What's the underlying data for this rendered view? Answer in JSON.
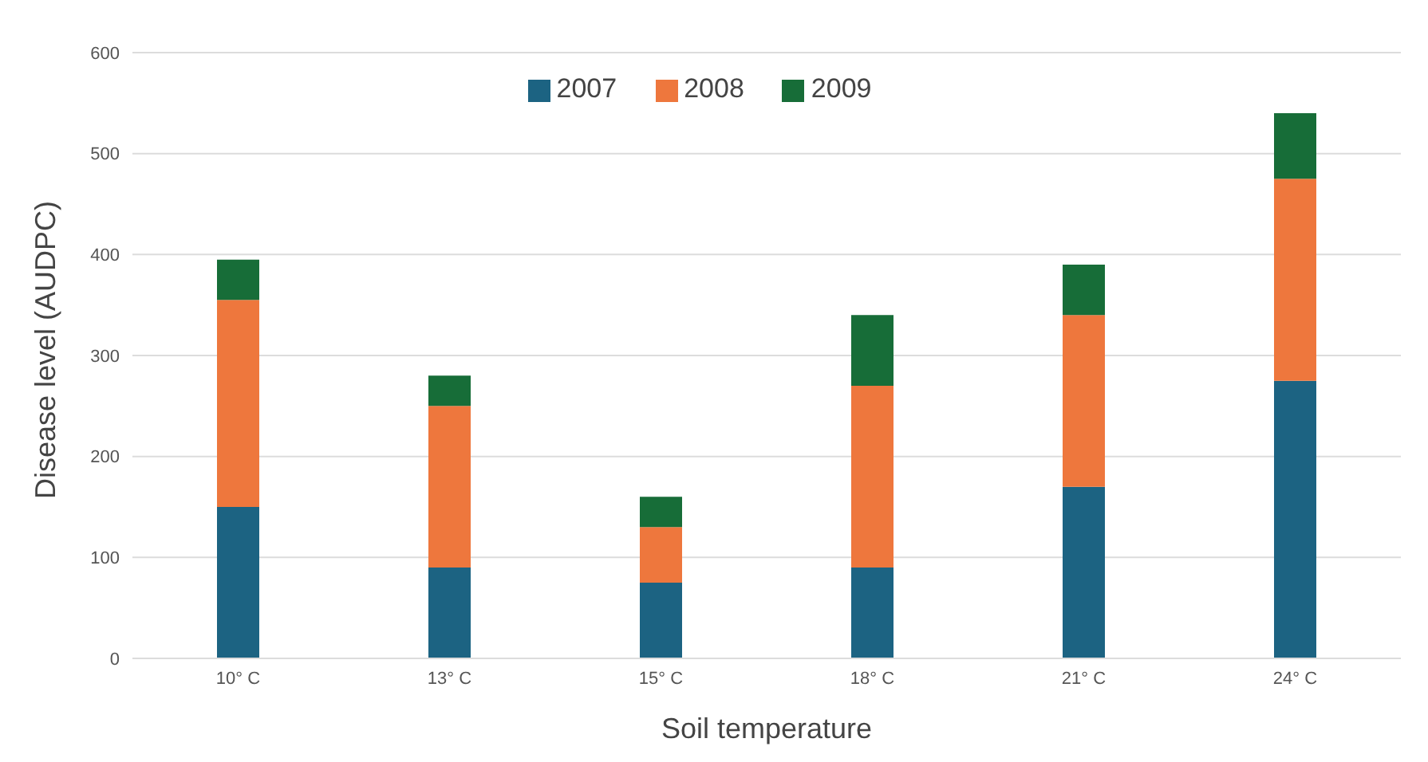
{
  "chart_data": {
    "type": "bar",
    "stacked": true,
    "xlabel": "Soil temperature",
    "ylabel": "Disease level (AUDPC)",
    "categories": [
      "10° C",
      "13° C",
      "15° C",
      "18° C",
      "21° C",
      "24° C"
    ],
    "series": [
      {
        "name": "2007",
        "color": "#1c6382",
        "values": [
          150,
          90,
          75,
          90,
          170,
          275
        ]
      },
      {
        "name": "2008",
        "color": "#ee773d",
        "values": [
          205,
          160,
          55,
          180,
          170,
          200
        ]
      },
      {
        "name": "2009",
        "color": "#176d38",
        "values": [
          40,
          30,
          30,
          70,
          50,
          65
        ]
      }
    ],
    "ylim": [
      0,
      600
    ],
    "yticks": [
      0,
      100,
      200,
      300,
      400,
      500,
      600
    ],
    "grid": "y",
    "legend": "top"
  }
}
